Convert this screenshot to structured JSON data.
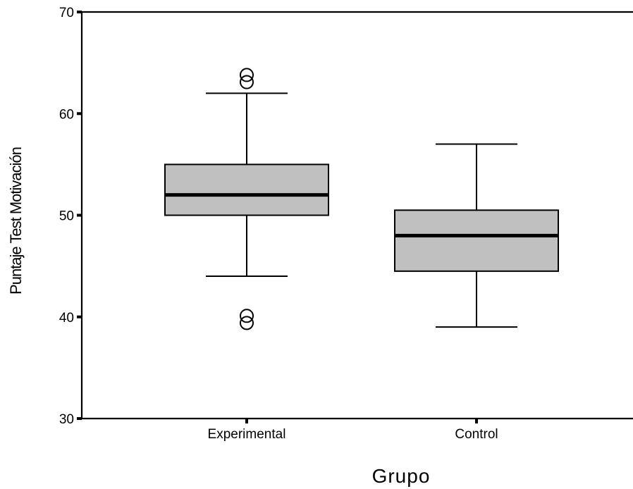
{
  "chart_data": {
    "type": "boxplot",
    "title": "",
    "xlabel": "Grupo",
    "ylabel": "Puntaje Test Motivación",
    "ylim": [
      30,
      70
    ],
    "yticks": [
      30,
      40,
      50,
      60,
      70
    ],
    "ytick_labels": [
      "30",
      "40",
      "50",
      "60",
      "70"
    ],
    "categories": [
      "Experimental",
      "Control"
    ],
    "box_color": "#c0c0c0",
    "boxes": [
      {
        "category": "Experimental",
        "whisker_low": 44,
        "q1": 50,
        "median": 52,
        "q3": 55,
        "whisker_high": 62,
        "outliers": [
          39.4,
          40.1,
          63.1,
          63.8
        ]
      },
      {
        "category": "Control",
        "whisker_low": 39,
        "q1": 44.5,
        "median": 48,
        "q3": 50.5,
        "whisker_high": 57,
        "outliers": []
      }
    ],
    "grid": false,
    "legend": "none"
  }
}
